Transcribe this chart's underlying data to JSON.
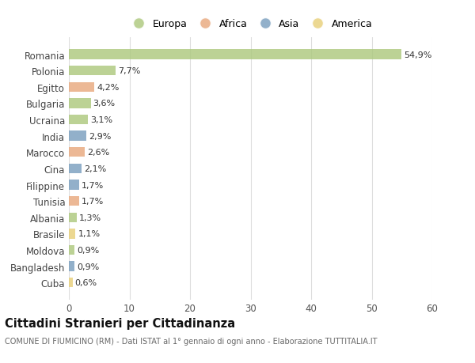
{
  "countries": [
    "Romania",
    "Polonia",
    "Egitto",
    "Bulgaria",
    "Ucraina",
    "India",
    "Marocco",
    "Cina",
    "Filippine",
    "Tunisia",
    "Albania",
    "Brasile",
    "Moldova",
    "Bangladesh",
    "Cuba"
  ],
  "values": [
    54.9,
    7.7,
    4.2,
    3.6,
    3.1,
    2.9,
    2.6,
    2.1,
    1.7,
    1.7,
    1.3,
    1.1,
    0.9,
    0.9,
    0.6
  ],
  "labels": [
    "54,9%",
    "7,7%",
    "4,2%",
    "3,6%",
    "3,1%",
    "2,9%",
    "2,6%",
    "2,1%",
    "1,7%",
    "1,7%",
    "1,3%",
    "1,1%",
    "0,9%",
    "0,9%",
    "0,6%"
  ],
  "continents": [
    "Europa",
    "Europa",
    "Africa",
    "Europa",
    "Europa",
    "Asia",
    "Africa",
    "Asia",
    "Asia",
    "Africa",
    "Europa",
    "America",
    "Europa",
    "Asia",
    "America"
  ],
  "continent_colors": {
    "Europa": "#adc97e",
    "Africa": "#e8a97e",
    "Asia": "#7a9fbf",
    "America": "#e8d07a"
  },
  "legend_order": [
    "Europa",
    "Africa",
    "Asia",
    "America"
  ],
  "title": "Cittadini Stranieri per Cittadinanza",
  "subtitle": "COMUNE DI FIUMICINO (RM) - Dati ISTAT al 1° gennaio di ogni anno - Elaborazione TUTTITALIA.IT",
  "xlim": [
    0,
    60
  ],
  "xticks": [
    0,
    10,
    20,
    30,
    40,
    50,
    60
  ],
  "background_color": "#ffffff",
  "grid_color": "#dddddd",
  "bar_height": 0.6,
  "bar_alpha": 0.82
}
